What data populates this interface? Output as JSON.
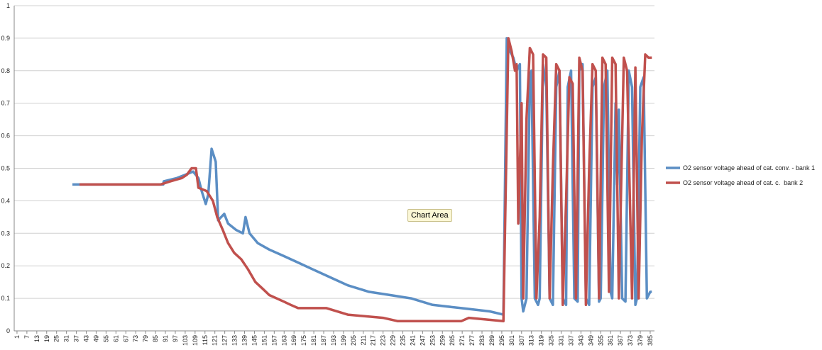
{
  "chart_data": {
    "type": "line",
    "annotation": "Chart Area",
    "xlim": [
      -0.7,
      387.6
    ],
    "xticks": [
      1,
      7,
      13,
      19,
      25,
      31,
      37,
      43,
      49,
      55,
      61,
      67,
      73,
      79,
      85,
      91,
      97,
      103,
      109,
      115,
      121,
      127,
      133,
      139,
      145,
      151,
      157,
      163,
      169,
      175,
      181,
      187,
      193,
      199,
      205,
      211,
      217,
      223,
      229,
      235,
      241,
      247,
      253,
      259,
      265,
      271,
      277,
      283,
      289,
      295,
      301,
      307,
      313,
      319,
      325,
      331,
      337,
      343,
      349,
      355,
      361,
      367,
      373,
      379,
      385
    ],
    "ylim": [
      0,
      1
    ],
    "yticks": [
      0,
      0.1,
      0.2,
      0.3,
      0.4,
      0.5,
      0.6,
      0.7,
      0.8,
      0.9,
      1
    ],
    "grid": true,
    "legend": "right",
    "series": [
      {
        "name": "O2 sensor voltage ahead of cat. conv. - bank 1",
        "color": "#5b8ec4",
        "x": [
          34.6,
          89.7,
          90,
          98,
          103,
          107.8,
          111,
          113,
          115.5,
          117,
          119,
          121.5,
          123,
          126.7,
          129,
          134,
          138,
          139.6,
          142,
          147,
          154,
          162.8,
          171.5,
          180,
          193,
          201.6,
          214.5,
          227.4,
          240,
          253,
          270.5,
          287.7,
          296,
          298,
          300,
          302,
          304,
          306,
          307,
          308,
          310,
          312,
          313,
          315,
          317,
          318,
          320,
          322,
          324,
          326,
          328,
          330,
          332,
          334,
          335,
          337,
          339,
          341,
          342,
          344,
          346,
          348,
          350,
          352,
          354,
          355,
          357,
          359,
          361,
          362,
          364,
          365,
          366,
          368,
          370,
          372,
          374,
          376,
          377,
          379,
          381,
          383,
          385,
          386
        ],
        "values": [
          0.45,
          0.45,
          0.46,
          0.47,
          0.48,
          0.49,
          0.47,
          0.43,
          0.39,
          0.42,
          0.56,
          0.52,
          0.34,
          0.36,
          0.33,
          0.31,
          0.3,
          0.35,
          0.3,
          0.27,
          0.25,
          0.23,
          0.21,
          0.19,
          0.16,
          0.14,
          0.12,
          0.11,
          0.1,
          0.08,
          0.07,
          0.06,
          0.05,
          0.9,
          0.86,
          0.84,
          0.8,
          0.82,
          0.1,
          0.06,
          0.1,
          0.78,
          0.8,
          0.1,
          0.08,
          0.1,
          0.82,
          0.75,
          0.1,
          0.08,
          0.75,
          0.8,
          0.1,
          0.08,
          0.75,
          0.8,
          0.1,
          0.09,
          0.8,
          0.82,
          0.1,
          0.08,
          0.75,
          0.78,
          0.09,
          0.1,
          0.75,
          0.8,
          0.12,
          0.1,
          0.7,
          0.45,
          0.68,
          0.1,
          0.09,
          0.8,
          0.75,
          0.08,
          0.1,
          0.75,
          0.78,
          0.1,
          0.12,
          0.12
        ]
      },
      {
        "name": "O2 sensor voltage ahead of cat. c.  bank 2",
        "color": "#c0504d",
        "x": [
          38.9,
          88,
          94,
          101,
          104,
          106.9,
          109.5,
          111,
          116,
          119.8,
          122.4,
          125.8,
          129,
          132.7,
          137,
          141,
          145.6,
          149.9,
          154,
          162.8,
          167,
          171.5,
          188.7,
          201.6,
          223,
          231.7,
          249,
          270.5,
          275,
          296,
          299,
          301,
          303,
          304,
          305,
          307,
          308,
          310,
          312,
          314,
          316,
          318,
          320,
          322,
          324,
          326,
          328,
          330,
          332,
          334,
          336,
          338,
          340,
          342,
          344,
          346,
          348,
          350,
          352,
          354,
          356,
          358,
          360,
          362,
          364,
          366,
          369,
          371,
          374,
          376,
          378,
          380,
          382,
          384,
          386
        ],
        "values": [
          0.45,
          0.45,
          0.46,
          0.47,
          0.48,
          0.5,
          0.5,
          0.44,
          0.43,
          0.4,
          0.35,
          0.31,
          0.27,
          0.24,
          0.22,
          0.19,
          0.15,
          0.13,
          0.11,
          0.09,
          0.08,
          0.07,
          0.07,
          0.05,
          0.04,
          0.03,
          0.03,
          0.03,
          0.04,
          0.03,
          0.9,
          0.86,
          0.8,
          0.82,
          0.33,
          0.7,
          0.1,
          0.65,
          0.87,
          0.85,
          0.1,
          0.35,
          0.85,
          0.84,
          0.1,
          0.5,
          0.82,
          0.8,
          0.08,
          0.4,
          0.78,
          0.76,
          0.1,
          0.84,
          0.8,
          0.08,
          0.5,
          0.82,
          0.8,
          0.1,
          0.84,
          0.82,
          0.12,
          0.84,
          0.82,
          0.1,
          0.84,
          0.8,
          0.1,
          0.81,
          0.1,
          0.6,
          0.85,
          0.84,
          0.84
        ]
      }
    ]
  }
}
